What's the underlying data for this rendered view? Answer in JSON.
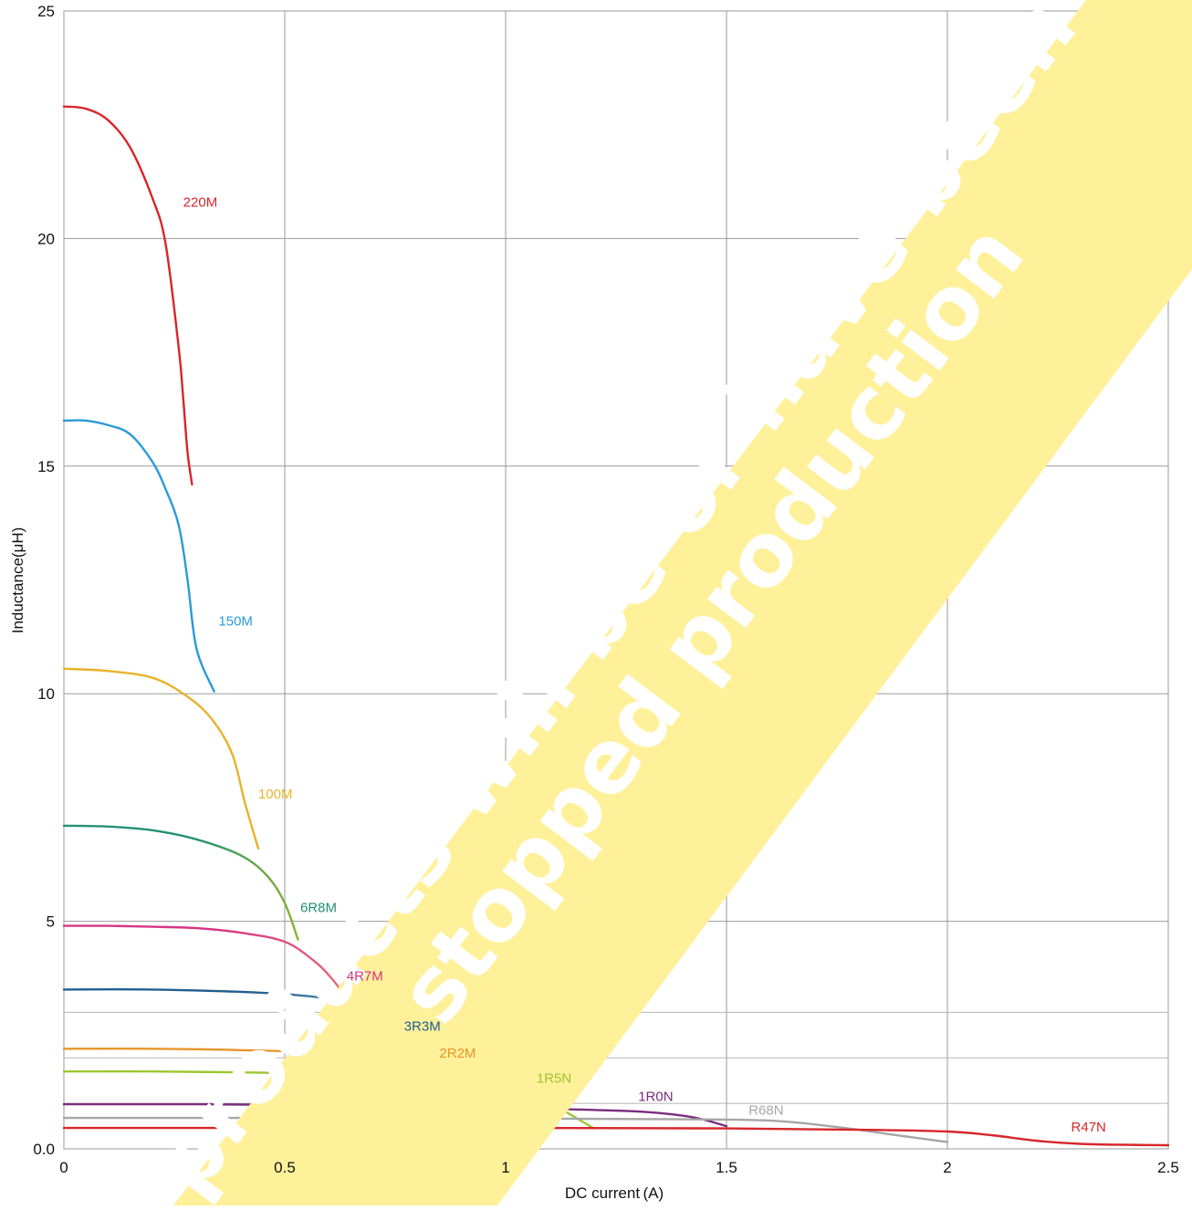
{
  "chart_data": {
    "type": "line",
    "title": "",
    "xlabel": "DC current (A)",
    "ylabel": "Inductance(μH)",
    "xlim": [
      0,
      2.5
    ],
    "ylim": [
      0,
      25
    ],
    "grid": true,
    "x_ticks": [
      {
        "value": 0,
        "label": "0"
      },
      {
        "value": 0.5,
        "label": "0.5"
      },
      {
        "value": 1,
        "label": "1"
      },
      {
        "value": 1.5,
        "label": "1.5"
      },
      {
        "value": 2,
        "label": "2"
      },
      {
        "value": 2.5,
        "label": "2.5"
      }
    ],
    "y_ticks": [
      {
        "value": 0,
        "label": "0.0"
      },
      {
        "value": 5,
        "label": "5"
      },
      {
        "value": 10,
        "label": "10"
      },
      {
        "value": 15,
        "label": "15"
      },
      {
        "value": 20,
        "label": "20"
      },
      {
        "value": 25,
        "label": "25"
      }
    ],
    "y_minor_gridlines": [
      1.0,
      2.0,
      3.0
    ],
    "series": [
      {
        "name": "220M",
        "color": "#d7262a",
        "label_at": [
          0.27,
          20.7
        ],
        "points": [
          [
            0,
            22.9
          ],
          [
            0.05,
            22.85
          ],
          [
            0.1,
            22.6
          ],
          [
            0.15,
            22.0
          ],
          [
            0.2,
            20.9
          ],
          [
            0.23,
            19.9
          ],
          [
            0.26,
            17.6
          ],
          [
            0.27,
            16.5
          ],
          [
            0.28,
            15.3
          ],
          [
            0.29,
            14.6
          ]
        ]
      },
      {
        "name": "150M",
        "color": "#2a9ad8",
        "label_at": [
          0.35,
          11.5
        ],
        "points": [
          [
            0,
            16.0
          ],
          [
            0.05,
            16.0
          ],
          [
            0.1,
            15.9
          ],
          [
            0.15,
            15.7
          ],
          [
            0.2,
            15.1
          ],
          [
            0.23,
            14.5
          ],
          [
            0.26,
            13.7
          ],
          [
            0.28,
            12.5
          ],
          [
            0.3,
            11.0
          ],
          [
            0.34,
            10.05
          ]
        ]
      },
      {
        "name": "100M",
        "color": "#e8b32a",
        "label_at": [
          0.44,
          7.7
        ],
        "points": [
          [
            0,
            10.55
          ],
          [
            0.1,
            10.5
          ],
          [
            0.2,
            10.35
          ],
          [
            0.27,
            10.0
          ],
          [
            0.33,
            9.5
          ],
          [
            0.38,
            8.7
          ],
          [
            0.41,
            7.6
          ],
          [
            0.44,
            6.6
          ]
        ]
      },
      {
        "name": "6R8M",
        "color": "#239073",
        "endColor": "#8bb42f",
        "label_at": [
          0.535,
          5.2
        ],
        "points": [
          [
            0,
            7.1
          ],
          [
            0.1,
            7.08
          ],
          [
            0.2,
            7.0
          ],
          [
            0.3,
            6.8
          ],
          [
            0.4,
            6.45
          ],
          [
            0.46,
            6.0
          ],
          [
            0.5,
            5.4
          ],
          [
            0.53,
            4.6
          ]
        ]
      },
      {
        "name": "4R7M",
        "color": "#d63584",
        "endColor": "#e76d7c",
        "label_at": [
          0.64,
          3.7
        ],
        "points": [
          [
            0,
            4.9
          ],
          [
            0.1,
            4.9
          ],
          [
            0.2,
            4.88
          ],
          [
            0.3,
            4.85
          ],
          [
            0.4,
            4.75
          ],
          [
            0.5,
            4.55
          ],
          [
            0.57,
            4.1
          ],
          [
            0.61,
            3.7
          ],
          [
            0.64,
            3.3
          ]
        ]
      },
      {
        "name": "3R3M",
        "color": "#1f5e8e",
        "endColor": "#7aa2c8",
        "label_at": [
          0.77,
          2.6
        ],
        "points": [
          [
            0,
            3.5
          ],
          [
            0.2,
            3.5
          ],
          [
            0.4,
            3.45
          ],
          [
            0.5,
            3.4
          ],
          [
            0.6,
            3.3
          ],
          [
            0.7,
            3.1
          ],
          [
            0.74,
            2.7
          ],
          [
            0.78,
            1.95
          ]
        ]
      },
      {
        "name": "2R2M",
        "color": "#e7952a",
        "endColor": "#f3b868",
        "label_at": [
          0.85,
          2.0
        ],
        "points": [
          [
            0,
            2.2
          ],
          [
            0.2,
            2.2
          ],
          [
            0.4,
            2.17
          ],
          [
            0.6,
            2.1
          ],
          [
            0.8,
            1.9
          ],
          [
            0.88,
            1.7
          ],
          [
            0.93,
            1.3
          ],
          [
            1.0,
            0.85
          ]
        ]
      },
      {
        "name": "1R5N",
        "color": "#9cc632",
        "label_at": [
          1.07,
          1.45
        ],
        "points": [
          [
            0,
            1.7
          ],
          [
            0.2,
            1.7
          ],
          [
            0.4,
            1.68
          ],
          [
            0.6,
            1.65
          ],
          [
            0.8,
            1.58
          ],
          [
            0.9,
            1.5
          ],
          [
            1.0,
            1.4
          ],
          [
            1.07,
            1.2
          ],
          [
            1.13,
            0.85
          ],
          [
            1.2,
            0.45
          ]
        ]
      },
      {
        "name": "1R0N",
        "color": "#7a2d7f",
        "label_at": [
          1.3,
          1.05
        ],
        "points": [
          [
            0,
            0.98
          ],
          [
            0.3,
            0.98
          ],
          [
            0.6,
            0.96
          ],
          [
            0.9,
            0.93
          ],
          [
            1.1,
            0.88
          ],
          [
            1.3,
            0.82
          ],
          [
            1.42,
            0.7
          ],
          [
            1.5,
            0.5
          ]
        ]
      },
      {
        "name": "R68N",
        "color": "#a6a6a6",
        "label_at": [
          1.55,
          0.75
        ],
        "points": [
          [
            0,
            0.68
          ],
          [
            0.5,
            0.68
          ],
          [
            1.0,
            0.67
          ],
          [
            1.4,
            0.65
          ],
          [
            1.6,
            0.62
          ],
          [
            1.75,
            0.48
          ],
          [
            1.9,
            0.28
          ],
          [
            2.0,
            0.15
          ]
        ]
      },
      {
        "name": "R47N",
        "color": "#d7262a",
        "label_at": [
          2.28,
          0.38
        ],
        "points": [
          [
            0,
            0.46
          ],
          [
            0.5,
            0.46
          ],
          [
            1.0,
            0.46
          ],
          [
            1.5,
            0.45
          ],
          [
            1.8,
            0.42
          ],
          [
            2.0,
            0.38
          ],
          [
            2.1,
            0.3
          ],
          [
            2.2,
            0.18
          ],
          [
            2.3,
            0.11
          ],
          [
            2.4,
            0.09
          ],
          [
            2.5,
            0.08
          ]
        ]
      }
    ]
  },
  "watermark": {
    "line1": "products will be or have been",
    "line2": "stopped production",
    "color": "#fff09a"
  }
}
